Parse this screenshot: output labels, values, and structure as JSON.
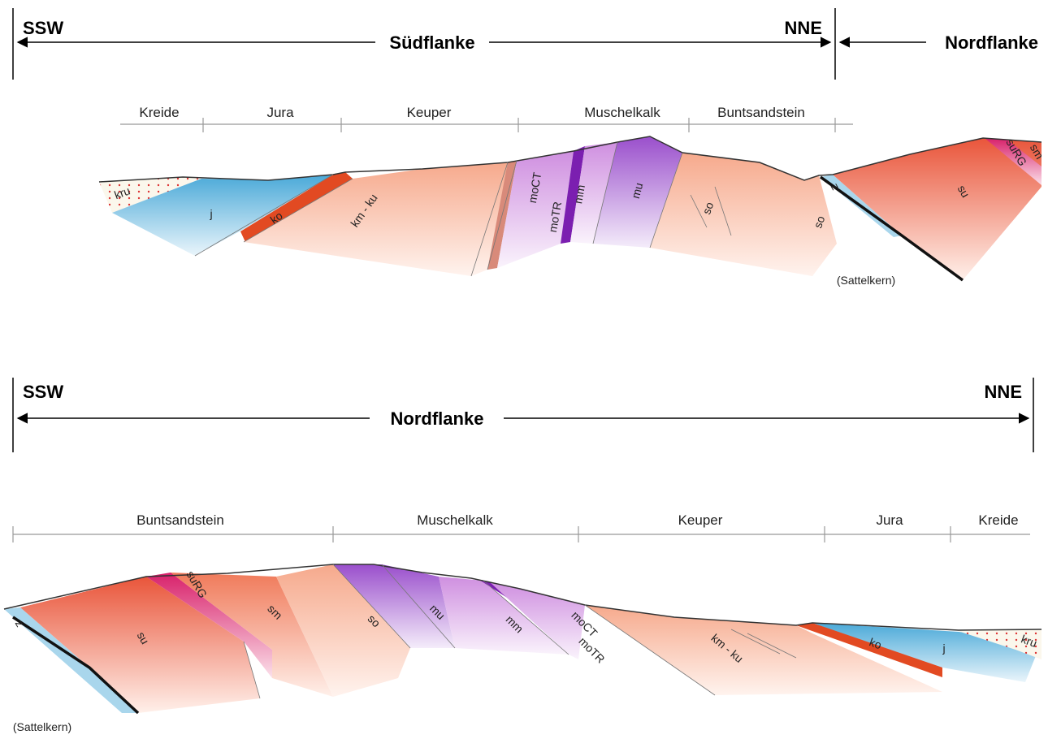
{
  "sections": [
    {
      "direction_left": "SSW",
      "direction_right": "NNE",
      "flank": "Südflanke",
      "flank_right": "Nordflanke",
      "periods": [
        "Kreide",
        "Jura",
        "Keuper",
        "Muschelkalk",
        "Buntsandstein"
      ],
      "units": [
        "kru",
        "j",
        "ko",
        "km - ku",
        "moCT",
        "moTR",
        "mm",
        "mu",
        "so",
        "so",
        "z",
        "su",
        "suRG",
        "sm"
      ],
      "note": "(Sattelkern)"
    },
    {
      "direction_left": "SSW",
      "direction_right": "NNE",
      "flank": "Nordflanke",
      "periods": [
        "Buntsandstein",
        "Muschelkalk",
        "Keuper",
        "Jura",
        "Kreide"
      ],
      "units": [
        "z",
        "su",
        "suRG",
        "sm",
        "so",
        "mu",
        "mm",
        "moCT",
        "moTR",
        "km - ku",
        "ko",
        "j",
        "kru"
      ],
      "note": "(Sattelkern)"
    }
  ]
}
